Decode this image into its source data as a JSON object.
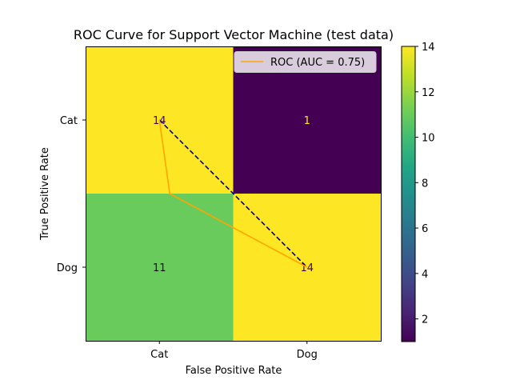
{
  "chart_data": {
    "type": "heatmap",
    "title": "ROC Curve for Support Vector Machine (test data)",
    "xlabel": "False Positive Rate",
    "ylabel": "True Positive Rate",
    "x_categories": [
      "Cat",
      "Dog"
    ],
    "y_categories": [
      "Cat",
      "Dog"
    ],
    "matrix": [
      [
        14,
        1
      ],
      [
        11,
        14
      ]
    ],
    "cell_label_colors": [
      [
        "#440154",
        "#fde725"
      ],
      [
        "#000000",
        "#440154"
      ]
    ],
    "colormap": "viridis",
    "colorbar": {
      "min": 1,
      "max": 14,
      "ticks": [
        "2",
        "4",
        "6",
        "8",
        "10",
        "12",
        "14"
      ]
    },
    "roc_curve": {
      "label": "ROC (AUC = 0.75)",
      "color": "#ffa500",
      "x": [
        0.0,
        0.07,
        1.0
      ],
      "y": [
        1.0,
        0.5,
        0.0
      ]
    },
    "diagonal": {
      "color": "#000080",
      "style": "dashed",
      "x": [
        0.0,
        1.0
      ],
      "y": [
        1.0,
        0.0
      ]
    },
    "legend_position": "upper-right"
  }
}
